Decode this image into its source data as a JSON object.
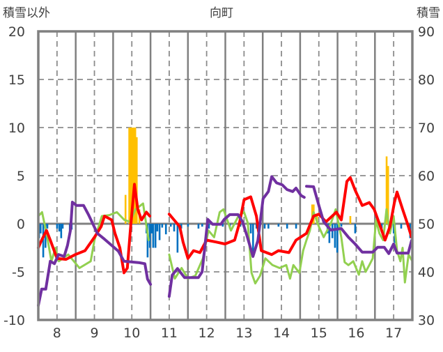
{
  "chart_data": {
    "type": "line",
    "title": "向町",
    "ylabel": "積雪以外",
    "y2label": "積雪",
    "xlim": [
      7.5,
      17.5
    ],
    "ylim": [
      -10,
      20
    ],
    "y2lim": [
      30,
      90
    ],
    "x_ticks": [
      "8",
      "9",
      "10",
      "11",
      "12",
      "13",
      "14",
      "15",
      "16",
      "17"
    ],
    "x_tick_values": [
      8,
      9,
      10,
      11,
      12,
      13,
      14,
      15,
      16,
      17
    ],
    "y_ticks": [
      "20",
      "15",
      "10",
      "5",
      "0",
      "-5",
      "-10"
    ],
    "y_tick_values": [
      20,
      15,
      10,
      5,
      0,
      -5,
      -10
    ],
    "y2_ticks": [
      "90",
      "80",
      "70",
      "60",
      "50",
      "40",
      "30"
    ],
    "grid": true,
    "colors": {
      "red": "#FF0000",
      "green": "#92D050",
      "purple": "#7030A0",
      "blue": "#0070C0",
      "orange": "#FFC000",
      "frame": "#808080"
    },
    "bars": [
      {
        "name": "orange-bars",
        "color": "#FFC000",
        "points": [
          [
            9.83,
            3.0
          ],
          [
            9.93,
            10
          ],
          [
            9.97,
            10
          ],
          [
            10.01,
            10
          ],
          [
            10.05,
            10
          ],
          [
            10.09,
            10
          ],
          [
            10.13,
            9
          ],
          [
            10.2,
            1.5
          ],
          [
            14.82,
            2.0
          ],
          [
            14.86,
            2.0
          ],
          [
            14.95,
            0.8
          ],
          [
            15.84,
            0.8
          ],
          [
            16.81,
            7.0
          ],
          [
            16.85,
            6.0
          ]
        ]
      },
      {
        "name": "blue-bars",
        "color": "#0070C0",
        "points": [
          [
            7.52,
            -1.5
          ],
          [
            7.56,
            -1.0
          ],
          [
            7.63,
            -3.5
          ],
          [
            7.69,
            -2.5
          ],
          [
            7.74,
            -0.5
          ],
          [
            8.0,
            -0.5
          ],
          [
            8.06,
            -0.8
          ],
          [
            8.11,
            -1.5
          ],
          [
            8.15,
            -0.5
          ],
          [
            8.34,
            -1.0
          ],
          [
            8.39,
            -0.6
          ],
          [
            10.39,
            -1.0
          ],
          [
            10.42,
            -3.5
          ],
          [
            10.48,
            -2.5
          ],
          [
            10.53,
            -1.0
          ],
          [
            10.57,
            -2.5
          ],
          [
            10.63,
            -2.5
          ],
          [
            10.68,
            -0.8
          ],
          [
            10.74,
            -1.7
          ],
          [
            10.81,
            -0.4
          ],
          [
            10.91,
            -1.1
          ],
          [
            11.04,
            -0.3
          ],
          [
            11.13,
            -0.8
          ],
          [
            11.22,
            -3.0
          ],
          [
            11.32,
            -0.5
          ],
          [
            11.5,
            -0.3
          ],
          [
            11.78,
            -0.5
          ],
          [
            11.88,
            -0.3
          ],
          [
            12.06,
            -0.5
          ],
          [
            12.43,
            -0.3
          ],
          [
            12.62,
            -0.5
          ],
          [
            12.9,
            -0.3
          ],
          [
            13.18,
            -1.0
          ],
          [
            13.24,
            -3.0
          ],
          [
            13.33,
            -0.5
          ],
          [
            13.55,
            -0.5
          ],
          [
            13.65,
            -0.5
          ],
          [
            13.92,
            -0.3
          ],
          [
            14.15,
            -0.5
          ],
          [
            14.39,
            -0.5
          ],
          [
            15.23,
            -1.0
          ],
          [
            15.28,
            -2.0
          ],
          [
            15.36,
            -1.5
          ],
          [
            15.43,
            -2.5
          ],
          [
            15.49,
            -3.0
          ],
          [
            15.6,
            -0.3
          ],
          [
            15.97,
            -1.0
          ],
          [
            16.68,
            -0.5
          ],
          [
            17.0,
            -1.0
          ],
          [
            17.03,
            -2.0
          ],
          [
            17.2,
            -0.5
          ],
          [
            17.44,
            -1.5
          ]
        ]
      }
    ],
    "series": [
      {
        "name": "green-line",
        "axis": "left",
        "color": "#92D050",
        "width": 3,
        "points": [
          [
            7.5,
            0.8
          ],
          [
            7.6,
            1.2
          ],
          [
            7.72,
            -1.0
          ],
          [
            7.85,
            -3.9
          ],
          [
            7.96,
            -2.5
          ],
          [
            8.05,
            -3.9
          ],
          [
            8.3,
            -3.2
          ],
          [
            8.6,
            -4.6
          ],
          [
            8.9,
            -3.9
          ],
          [
            9.0,
            -1.7
          ],
          [
            9.2,
            0.8
          ],
          [
            9.4,
            0.9
          ],
          [
            9.6,
            1.2
          ],
          [
            9.8,
            0.4
          ],
          [
            9.95,
            0.2
          ],
          [
            10.1,
            1.5
          ],
          [
            10.3,
            2.1
          ],
          [
            10.45,
            -1.7
          ],
          null,
          [
            11.0,
            -3.2
          ],
          [
            11.15,
            -5.7
          ],
          [
            11.33,
            -4.6
          ],
          [
            11.5,
            -5.7
          ],
          [
            11.7,
            -5.4
          ],
          [
            11.9,
            -3.6
          ],
          [
            12.05,
            -0.7
          ],
          [
            12.2,
            -1.4
          ],
          [
            12.35,
            1.2
          ],
          [
            12.45,
            1.5
          ],
          [
            12.65,
            -0.7
          ],
          [
            12.85,
            0.8
          ],
          [
            13.0,
            1.2
          ],
          [
            13.1,
            0.1
          ],
          [
            13.2,
            -5.1
          ],
          [
            13.3,
            -6.2
          ],
          [
            13.43,
            -5.4
          ],
          [
            13.57,
            -3.6
          ],
          [
            13.76,
            -4.3
          ],
          [
            13.95,
            -4.6
          ],
          [
            14.13,
            -4.3
          ],
          [
            14.23,
            -5.7
          ],
          [
            14.32,
            -4.3
          ],
          [
            14.48,
            -5.1
          ],
          [
            14.58,
            -2.8
          ],
          [
            14.67,
            -1.7
          ],
          [
            14.76,
            -0.7
          ],
          [
            14.86,
            1.2
          ],
          [
            15.0,
            -0.3
          ],
          [
            15.13,
            -1.4
          ],
          [
            15.32,
            0.0
          ],
          [
            15.45,
            1.5
          ],
          [
            15.6,
            -1.4
          ],
          [
            15.69,
            -4.0
          ],
          [
            15.79,
            -4.3
          ],
          [
            15.92,
            -3.9
          ],
          [
            16.07,
            -5.3
          ],
          [
            16.16,
            -3.9
          ],
          [
            16.25,
            -5.0
          ],
          [
            16.35,
            -4.3
          ],
          [
            16.44,
            -3.6
          ],
          [
            16.53,
            0.4
          ],
          [
            16.62,
            -1.0
          ],
          [
            16.72,
            -1.7
          ],
          [
            16.81,
            1.5
          ],
          [
            16.9,
            -1.0
          ],
          [
            17.0,
            0.8
          ],
          [
            17.09,
            -2.8
          ],
          [
            17.18,
            -3.9
          ],
          [
            17.24,
            -2.5
          ],
          [
            17.3,
            -6.1
          ],
          [
            17.4,
            -3.2
          ],
          [
            17.5,
            -3.9
          ]
        ]
      },
      {
        "name": "red-line",
        "axis": "left",
        "color": "#FF0000",
        "width": 4,
        "points": [
          [
            7.5,
            -2.5
          ],
          [
            7.59,
            -1.7
          ],
          [
            7.72,
            -0.7
          ],
          [
            7.82,
            -1.7
          ],
          [
            8.0,
            -3.6
          ],
          [
            8.24,
            -3.7
          ],
          [
            8.49,
            -3.2
          ],
          [
            8.75,
            -2.8
          ],
          [
            9.0,
            -1.4
          ],
          [
            9.18,
            -0.3
          ],
          [
            9.27,
            0.8
          ],
          [
            9.46,
            0.4
          ],
          [
            9.55,
            -1.0
          ],
          [
            9.68,
            -2.5
          ],
          [
            9.79,
            -5.1
          ],
          [
            9.88,
            -4.6
          ],
          [
            9.96,
            -0.7
          ],
          [
            10.07,
            4.1
          ],
          [
            10.16,
            1.5
          ],
          [
            10.26,
            0.4
          ],
          [
            10.39,
            1.2
          ],
          [
            10.48,
            0.8
          ],
          null,
          [
            11.0,
            1.0
          ],
          [
            11.13,
            0.4
          ],
          [
            11.28,
            -0.3
          ],
          [
            11.37,
            -1.9
          ],
          [
            11.5,
            -3.6
          ],
          [
            11.65,
            -2.8
          ],
          [
            11.82,
            -3.0
          ],
          [
            12.0,
            -1.7
          ],
          [
            12.25,
            -1.9
          ],
          [
            12.49,
            -2.1
          ],
          [
            12.75,
            -1.7
          ],
          [
            12.88,
            0.1
          ],
          [
            13.0,
            2.5
          ],
          [
            13.18,
            2.8
          ],
          [
            13.33,
            0.8
          ],
          [
            13.46,
            -2.8
          ],
          [
            13.74,
            -3.2
          ],
          [
            13.92,
            -2.8
          ],
          [
            14.2,
            -3.0
          ],
          [
            14.39,
            -1.7
          ],
          [
            14.67,
            -1.0
          ],
          [
            14.86,
            0.8
          ],
          [
            15.0,
            1.0
          ],
          [
            15.19,
            0.2
          ],
          [
            15.47,
            1.2
          ],
          [
            15.6,
            0.4
          ],
          [
            15.75,
            4.4
          ],
          [
            15.84,
            4.8
          ],
          [
            15.97,
            3.5
          ],
          [
            16.16,
            1.9
          ],
          [
            16.35,
            2.2
          ],
          [
            16.48,
            1.5
          ],
          [
            16.62,
            0.0
          ],
          [
            16.77,
            -1.7
          ],
          [
            16.9,
            -0.3
          ],
          [
            17.02,
            2.2
          ],
          [
            17.09,
            3.3
          ],
          [
            17.24,
            1.5
          ],
          [
            17.37,
            0.0
          ],
          [
            17.48,
            -1.4
          ]
        ]
      },
      {
        "name": "purple-line",
        "axis": "right",
        "color": "#7030A0",
        "width": 4,
        "points": [
          [
            7.5,
            33.0
          ],
          [
            7.59,
            36.4
          ],
          [
            7.7,
            36.4
          ],
          [
            7.82,
            42.2
          ],
          [
            7.93,
            41.7
          ],
          [
            8.04,
            43.6
          ],
          [
            8.19,
            43.2
          ],
          [
            8.28,
            45.5
          ],
          [
            8.36,
            48.7
          ],
          [
            8.41,
            54.5
          ],
          [
            8.52,
            53.8
          ],
          [
            8.71,
            53.8
          ],
          [
            8.84,
            51.9
          ],
          [
            8.95,
            50.1
          ],
          [
            9.08,
            48.0
          ],
          [
            9.27,
            46.8
          ],
          [
            9.46,
            45.5
          ],
          [
            9.64,
            44.3
          ],
          [
            9.79,
            42.2
          ],
          [
            10.2,
            41.9
          ],
          [
            10.35,
            41.7
          ],
          [
            10.42,
            38.5
          ],
          [
            10.5,
            37.4
          ],
          null,
          [
            11.0,
            34.9
          ],
          [
            11.08,
            39.3
          ],
          [
            11.22,
            40.7
          ],
          [
            11.41,
            38.8
          ],
          [
            11.78,
            38.8
          ],
          [
            11.88,
            40.0
          ],
          [
            12.03,
            50.9
          ],
          [
            12.16,
            49.9
          ],
          [
            12.38,
            49.9
          ],
          [
            12.47,
            50.9
          ],
          [
            12.62,
            51.9
          ],
          [
            12.84,
            51.9
          ],
          [
            12.96,
            50.4
          ],
          [
            13.09,
            47.2
          ],
          [
            13.24,
            43.2
          ],
          [
            13.37,
            46.5
          ],
          [
            13.51,
            55.2
          ],
          [
            13.65,
            56.7
          ],
          [
            13.74,
            59.8
          ],
          [
            13.87,
            58.5
          ],
          [
            14.02,
            58.1
          ],
          [
            14.15,
            57.1
          ],
          [
            14.3,
            56.7
          ],
          [
            14.39,
            57.4
          ],
          [
            14.52,
            55.9
          ],
          [
            14.61,
            55.5
          ],
          null,
          [
            14.67,
            57.8
          ],
          [
            14.86,
            57.7
          ],
          [
            15.0,
            53.8
          ],
          [
            15.13,
            50.4
          ],
          [
            15.32,
            48.7
          ],
          [
            15.6,
            49.0
          ],
          [
            15.79,
            47.2
          ],
          [
            15.97,
            45.8
          ],
          [
            16.16,
            44.1
          ],
          [
            16.44,
            44.1
          ],
          [
            16.57,
            45.1
          ],
          [
            16.75,
            45.1
          ],
          [
            16.87,
            43.8
          ],
          [
            17.0,
            45.8
          ],
          [
            17.09,
            43.9
          ],
          [
            17.39,
            43.9
          ],
          [
            17.48,
            46.5
          ]
        ]
      }
    ]
  }
}
